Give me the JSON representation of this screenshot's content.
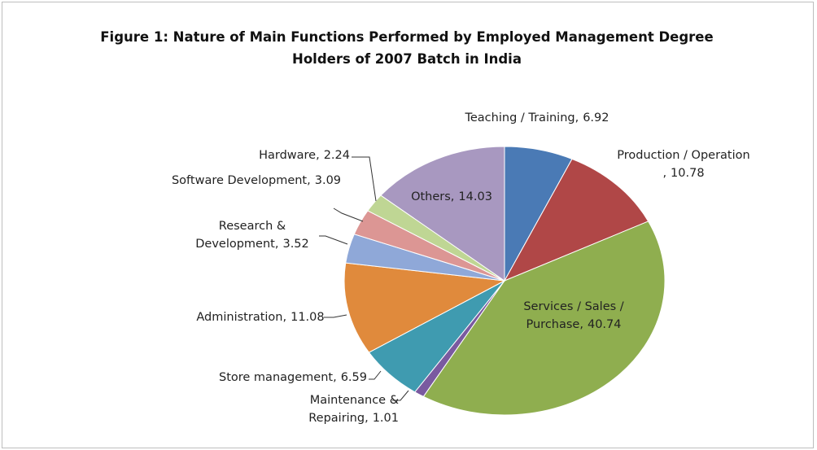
{
  "chart_data": {
    "type": "pie",
    "title": "Figure 1: Nature of Main Functions Performed by Employed Management Degree Holders of 2007 Batch in India",
    "categories": [
      "Teaching / Training,",
      "Production / Operation ,",
      "Services / Sales / Purchase,",
      "Maintenance & Repairing,",
      "Store management,",
      "Administration,",
      "Research & Development,",
      "Software Development,",
      "Hardware,",
      "Others,"
    ],
    "values": [
      6.92,
      10.78,
      40.74,
      1.01,
      6.59,
      11.08,
      3.52,
      3.09,
      2.24,
      14.03
    ],
    "colors": [
      "#4a7ab5",
      "#b04747",
      "#8fae4f",
      "#7a5aa0",
      "#3f9bb0",
      "#e08a3c",
      "#8fa8d8",
      "#dc9694",
      "#bfd694",
      "#a898c0"
    ]
  }
}
